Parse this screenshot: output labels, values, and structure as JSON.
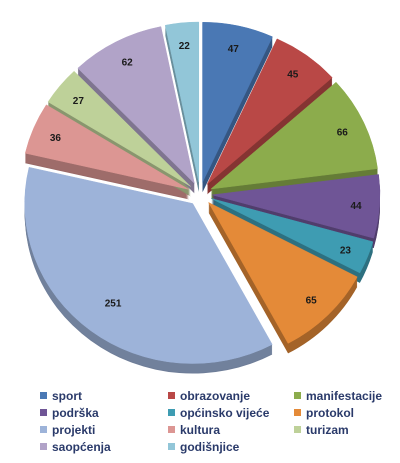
{
  "chart_data": {
    "type": "pie",
    "title": "",
    "exploded": true,
    "three_d": true,
    "legend_position": "bottom",
    "slices": [
      {
        "name": "sport",
        "value": 47,
        "color": "#4a78b4"
      },
      {
        "name": "obrazovanje",
        "value": 45,
        "color": "#b94846"
      },
      {
        "name": "manifestacije",
        "value": 66,
        "color": "#8cac4c"
      },
      {
        "name": "podrška",
        "value": 44,
        "color": "#6f5596"
      },
      {
        "name": "općinsko vijeće",
        "value": 23,
        "color": "#3e9cb2"
      },
      {
        "name": "protokol",
        "value": 65,
        "color": "#e48a38"
      },
      {
        "name": "projekti",
        "value": 251,
        "color": "#9db3d9"
      },
      {
        "name": "kultura",
        "value": 36,
        "color": "#dc9693"
      },
      {
        "name": "turizam",
        "value": 27,
        "color": "#bed199"
      },
      {
        "name": "saopćenja",
        "value": 62,
        "color": "#b1a3c8"
      },
      {
        "name": "godišnjice",
        "value": 22,
        "color": "#92c6d8"
      }
    ]
  }
}
